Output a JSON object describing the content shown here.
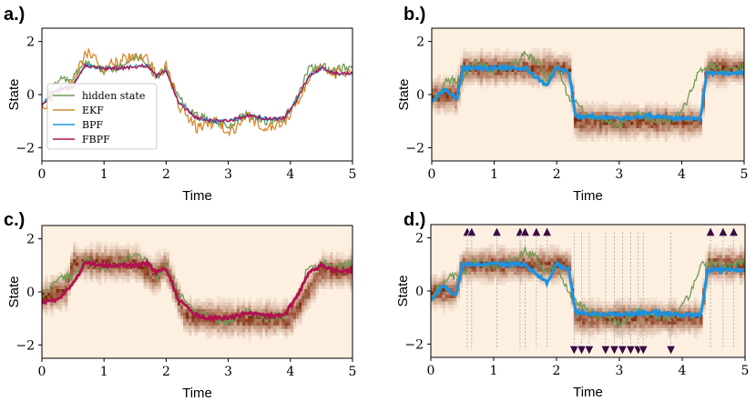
{
  "figure": {
    "colors": {
      "hidden": "#6f9a55",
      "ekf": "#d48a2e",
      "bpf": "#1a93e0",
      "fbpf": "#b0124f",
      "density_low": "#fdf0e1",
      "density_high": "#7a2300",
      "marker_fill": "#3d0b3f"
    }
  },
  "chart_data": [
    {
      "panel": "a.)",
      "type": "line",
      "xlabel": "Time",
      "ylabel": "State",
      "xlim": [
        0,
        5
      ],
      "ylim": [
        -2.5,
        2.5
      ],
      "xticks": [
        "0",
        "1",
        "2",
        "3",
        "4",
        "5"
      ],
      "yticks": [
        "-2",
        "0",
        "2"
      ],
      "legend": {
        "position": "lower-left",
        "entries": [
          "hidden state",
          "EKF",
          "BPF",
          "FBPF"
        ]
      },
      "series": [
        {
          "name": "hidden state",
          "color_key": "hidden",
          "x": [
            0,
            0.25,
            0.5,
            0.7,
            1.0,
            1.3,
            1.5,
            1.7,
            1.85,
            2.0,
            2.2,
            2.5,
            2.8,
            3.0,
            3.3,
            3.6,
            3.9,
            4.1,
            4.3,
            4.5,
            4.7,
            5.0
          ],
          "y": [
            -0.3,
            0.5,
            0.6,
            1.2,
            0.9,
            1.1,
            1.5,
            1.2,
            0.6,
            1.0,
            -0.1,
            -0.8,
            -1.0,
            -1.2,
            -0.7,
            -1.0,
            -0.9,
            -0.2,
            1.0,
            1.1,
            0.9,
            1.1
          ]
        },
        {
          "name": "EKF",
          "color_key": "ekf",
          "x": [
            0,
            0.25,
            0.5,
            0.7,
            1.0,
            1.3,
            1.5,
            1.7,
            1.85,
            2.0,
            2.2,
            2.5,
            2.8,
            3.0,
            3.3,
            3.6,
            3.9,
            4.1,
            4.3,
            4.5,
            4.7,
            5.0
          ],
          "y": [
            -0.5,
            0.1,
            0.4,
            1.6,
            1.0,
            1.3,
            1.4,
            1.3,
            0.7,
            1.1,
            -0.4,
            -1.3,
            -1.0,
            -1.5,
            -0.8,
            -1.3,
            -1.1,
            -0.3,
            0.6,
            1.2,
            0.8,
            0.9
          ]
        },
        {
          "name": "BPF",
          "color_key": "bpf",
          "x": [
            0,
            0.25,
            0.5,
            0.7,
            1.0,
            1.3,
            1.5,
            1.7,
            1.85,
            2.0,
            2.2,
            2.5,
            2.8,
            3.0,
            3.3,
            3.6,
            3.9,
            4.1,
            4.3,
            4.5,
            4.7,
            5.0
          ],
          "y": [
            -0.4,
            0.2,
            0.3,
            1.1,
            1.0,
            1.0,
            1.1,
            1.1,
            0.7,
            0.9,
            -0.3,
            -0.9,
            -1.0,
            -1.0,
            -0.8,
            -0.9,
            -0.9,
            -0.2,
            0.7,
            1.0,
            0.8,
            0.8
          ]
        },
        {
          "name": "FBPF",
          "color_key": "fbpf",
          "x": [
            0,
            0.25,
            0.5,
            0.7,
            1.0,
            1.3,
            1.5,
            1.7,
            1.85,
            2.0,
            2.2,
            2.5,
            2.8,
            3.0,
            3.3,
            3.6,
            3.9,
            4.1,
            4.3,
            4.5,
            4.7,
            5.0
          ],
          "y": [
            -0.4,
            0.2,
            0.3,
            1.1,
            1.0,
            1.0,
            1.0,
            1.1,
            0.7,
            0.9,
            -0.3,
            -0.9,
            -1.0,
            -1.0,
            -0.8,
            -0.9,
            -0.9,
            -0.2,
            0.7,
            1.0,
            0.8,
            0.8
          ]
        }
      ]
    },
    {
      "panel": "b.)",
      "type": "heatmap",
      "xlabel": "Time",
      "ylabel": "State",
      "xlim": [
        0,
        5
      ],
      "ylim": [
        -2.5,
        2.5
      ],
      "xticks": [
        "0",
        "1",
        "2",
        "3",
        "4",
        "5"
      ],
      "yticks": [
        "-2",
        "0",
        "2"
      ],
      "density_center": {
        "x": [
          0,
          0.4,
          0.5,
          2.2,
          2.3,
          4.3,
          4.4,
          5.0
        ],
        "y": [
          0,
          0,
          1.0,
          1.0,
          -1.0,
          -1.0,
          1.0,
          1.0
        ]
      },
      "series": [
        {
          "name": "hidden state",
          "color_key": "hidden",
          "x": [
            0,
            0.25,
            0.5,
            0.7,
            1.0,
            1.3,
            1.5,
            1.7,
            1.85,
            2.0,
            2.2,
            2.5,
            2.8,
            3.0,
            3.3,
            3.6,
            3.9,
            4.1,
            4.3,
            4.5,
            4.7,
            5.0
          ],
          "y": [
            -0.3,
            0.5,
            0.6,
            1.2,
            0.9,
            1.1,
            1.5,
            1.2,
            0.6,
            1.0,
            -0.1,
            -0.8,
            -1.0,
            -1.2,
            -0.7,
            -1.0,
            -0.9,
            -0.2,
            1.0,
            1.1,
            0.9,
            1.1
          ]
        },
        {
          "name": "BPF",
          "color_key": "bpf",
          "x": [
            0,
            0.2,
            0.4,
            0.5,
            1.0,
            1.5,
            1.7,
            1.85,
            2.0,
            2.2,
            2.3,
            3.0,
            3.5,
            4.0,
            4.3,
            4.4,
            5.0
          ],
          "y": [
            -0.3,
            0.2,
            -0.2,
            1.0,
            1.0,
            1.0,
            0.6,
            0.3,
            1.0,
            0.8,
            -0.8,
            -0.9,
            -0.8,
            -0.9,
            -0.9,
            0.8,
            0.8
          ]
        }
      ]
    },
    {
      "panel": "c.)",
      "type": "heatmap",
      "xlabel": "Time",
      "ylabel": "State",
      "xlim": [
        0,
        5
      ],
      "ylim": [
        -2.5,
        2.5
      ],
      "xticks": [
        "0",
        "1",
        "2",
        "3",
        "4",
        "5"
      ],
      "yticks": [
        "-2",
        "0",
        "2"
      ],
      "density_center": {
        "x": [
          0,
          0.4,
          0.5,
          1.5,
          1.8,
          2.0,
          2.3,
          3.0,
          4.0,
          4.2,
          4.5,
          5.0
        ],
        "y": [
          -0.2,
          0.1,
          1.1,
          1.1,
          0.6,
          1.0,
          -0.9,
          -1.0,
          -1.0,
          -0.3,
          0.8,
          0.8
        ]
      },
      "series": [
        {
          "name": "hidden state",
          "color_key": "hidden",
          "x": [
            0,
            0.25,
            0.5,
            0.7,
            1.0,
            1.3,
            1.5,
            1.7,
            1.85,
            2.0,
            2.2,
            2.5,
            2.8,
            3.0,
            3.3,
            3.6,
            3.9,
            4.1,
            4.3,
            4.5,
            4.7,
            5.0
          ],
          "y": [
            -0.3,
            0.5,
            0.6,
            1.2,
            0.9,
            1.1,
            1.5,
            1.2,
            0.6,
            1.0,
            -0.1,
            -0.8,
            -1.0,
            -1.2,
            -0.7,
            -1.0,
            -0.9,
            -0.2,
            1.0,
            1.1,
            0.9,
            1.1
          ]
        },
        {
          "name": "FBPF",
          "color_key": "fbpf",
          "x": [
            0,
            0.25,
            0.5,
            0.7,
            1.0,
            1.3,
            1.5,
            1.7,
            1.85,
            2.0,
            2.2,
            2.5,
            2.8,
            3.0,
            3.3,
            3.6,
            3.9,
            4.1,
            4.3,
            4.5,
            4.7,
            5.0
          ],
          "y": [
            -0.4,
            -0.3,
            0.3,
            1.1,
            1.0,
            1.0,
            1.0,
            1.1,
            0.7,
            0.9,
            -0.3,
            -0.9,
            -1.0,
            -1.0,
            -0.8,
            -0.9,
            -0.9,
            -0.2,
            0.7,
            1.0,
            0.8,
            0.8
          ]
        }
      ]
    },
    {
      "panel": "d.)",
      "type": "heatmap",
      "xlabel": "Time",
      "ylabel": "State",
      "xlim": [
        0,
        5
      ],
      "ylim": [
        -2.5,
        2.5
      ],
      "xticks": [
        "0",
        "1",
        "2",
        "3",
        "4",
        "5"
      ],
      "yticks": [
        "-2",
        "0",
        "2"
      ],
      "density_center": {
        "x": [
          0,
          0.4,
          0.5,
          2.2,
          2.3,
          4.3,
          4.4,
          5.0
        ],
        "y": [
          0,
          0,
          1.0,
          1.0,
          -1.0,
          -1.0,
          1.0,
          1.0
        ]
      },
      "series": [
        {
          "name": "hidden state",
          "color_key": "hidden",
          "x": [
            0,
            0.25,
            0.5,
            0.7,
            1.0,
            1.3,
            1.5,
            1.7,
            1.85,
            2.0,
            2.2,
            2.5,
            2.8,
            3.0,
            3.3,
            3.6,
            3.9,
            4.1,
            4.3,
            4.5,
            4.7,
            5.0
          ],
          "y": [
            -0.3,
            0.5,
            0.6,
            1.2,
            0.9,
            1.1,
            1.5,
            1.2,
            0.6,
            1.0,
            -0.1,
            -0.8,
            -1.0,
            -1.2,
            -0.7,
            -1.0,
            -0.9,
            -0.2,
            1.0,
            1.1,
            0.9,
            1.1
          ]
        },
        {
          "name": "BPF",
          "color_key": "bpf",
          "x": [
            0,
            0.2,
            0.4,
            0.5,
            1.0,
            1.5,
            1.7,
            1.85,
            2.0,
            2.2,
            2.3,
            3.0,
            3.5,
            4.0,
            4.3,
            4.4,
            5.0
          ],
          "y": [
            -0.3,
            0.2,
            -0.2,
            1.0,
            1.0,
            1.0,
            0.6,
            0.3,
            1.0,
            0.8,
            -0.8,
            -0.9,
            -0.8,
            -0.9,
            -0.9,
            0.8,
            0.8
          ]
        }
      ],
      "up_events": [
        0.58,
        0.65,
        1.05,
        1.42,
        1.5,
        1.68,
        1.85,
        4.45,
        4.65,
        4.82
      ],
      "down_events": [
        2.28,
        2.4,
        2.52,
        2.78,
        2.92,
        3.05,
        3.18,
        3.3,
        3.38,
        3.82
      ],
      "event_marker_y": {
        "up": 2.2,
        "down": -2.2
      }
    }
  ]
}
